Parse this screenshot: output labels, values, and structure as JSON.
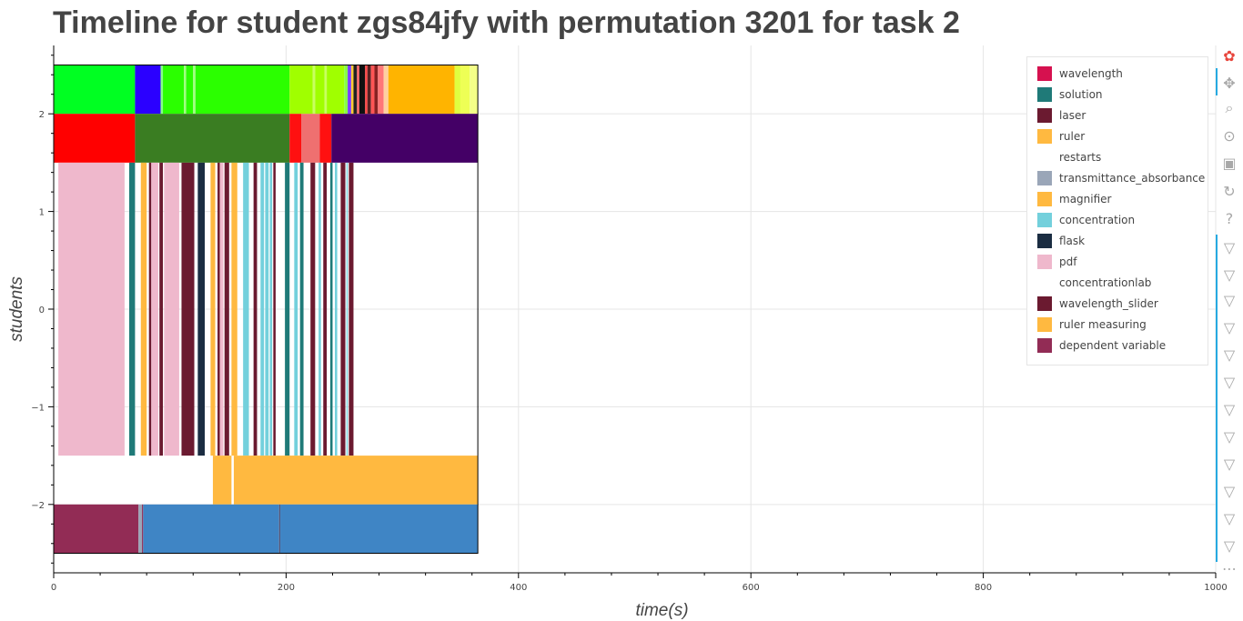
{
  "title": "Timeline for student zgs84jfy with permutation 3201 for task 2",
  "chart_data": {
    "type": "timeline",
    "title": "Timeline for student zgs84jfy with permutation 3201 for task 2",
    "xlabel": "time(s)",
    "ylabel": "students",
    "xlim": [
      0,
      1000
    ],
    "ylim": [
      -2.7,
      2.7
    ],
    "grid": true,
    "x_ticks": [
      0,
      200,
      400,
      600,
      800,
      1000
    ],
    "y_ticks": [
      {
        "value": 2,
        "label": "2"
      },
      {
        "value": 1,
        "label": "1"
      },
      {
        "value": 0,
        "label": "0"
      },
      {
        "value": -1,
        "label": "−1"
      },
      {
        "value": -2,
        "label": "−2"
      }
    ],
    "legend_position": "top-right",
    "legend": [
      {
        "label": "wavelength",
        "color": "#d6114f"
      },
      {
        "label": "solution",
        "color": "#1f7a78"
      },
      {
        "label": "laser",
        "color": "#6b1a30"
      },
      {
        "label": "ruler",
        "color": "#ffb940"
      },
      {
        "label": "restarts",
        "color": "#ffffff"
      },
      {
        "label": "transmittance_absorbance",
        "color": "#9aa6b8"
      },
      {
        "label": "magnifier",
        "color": "#ffb940"
      },
      {
        "label": "concentration",
        "color": "#73d0dc"
      },
      {
        "label": "flask",
        "color": "#1b2d42"
      },
      {
        "label": "pdf",
        "color": "#efb8cc"
      },
      {
        "label": "concentrationlab",
        "color": "#ffffff"
      },
      {
        "label": "wavelength_slider",
        "color": "#6b1a30"
      },
      {
        "label": "ruler measuring",
        "color": "#ffb940"
      },
      {
        "label": "dependent variable",
        "color": "#922c55"
      }
    ],
    "rows": [
      {
        "y_range": [
          2.0,
          2.5
        ],
        "segments": [
          {
            "x0": 0,
            "x1": 70,
            "color": "#00ff22"
          },
          {
            "x0": 70,
            "x1": 92,
            "color": "#2b00ff"
          },
          {
            "x0": 92,
            "x1": 94,
            "color": "#88ff88"
          },
          {
            "x0": 94,
            "x1": 112,
            "color": "#2bff00"
          },
          {
            "x0": 112,
            "x1": 114,
            "color": "#a0ff80"
          },
          {
            "x0": 114,
            "x1": 120,
            "color": "#2bff00"
          },
          {
            "x0": 120,
            "x1": 122,
            "color": "#a0ff80"
          },
          {
            "x0": 122,
            "x1": 203,
            "color": "#2bff00"
          },
          {
            "x0": 203,
            "x1": 223,
            "color": "#a0ff00"
          },
          {
            "x0": 223,
            "x1": 225,
            "color": "#c8ff60"
          },
          {
            "x0": 225,
            "x1": 233,
            "color": "#a0ff00"
          },
          {
            "x0": 233,
            "x1": 235,
            "color": "#c8ff60"
          },
          {
            "x0": 235,
            "x1": 250,
            "color": "#a0ff00"
          },
          {
            "x0": 250,
            "x1": 253,
            "color": "#88ff44"
          },
          {
            "x0": 253,
            "x1": 256,
            "color": "#7a3cff"
          },
          {
            "x0": 256,
            "x1": 258,
            "color": "#ffcc33"
          },
          {
            "x0": 258,
            "x1": 261,
            "color": "#222222"
          },
          {
            "x0": 261,
            "x1": 263,
            "color": "#ff6666"
          },
          {
            "x0": 263,
            "x1": 268,
            "color": "#111111"
          },
          {
            "x0": 268,
            "x1": 270,
            "color": "#ff4444"
          },
          {
            "x0": 270,
            "x1": 273,
            "color": "#552222"
          },
          {
            "x0": 273,
            "x1": 276,
            "color": "#ff5555"
          },
          {
            "x0": 276,
            "x1": 279,
            "color": "#882222"
          },
          {
            "x0": 279,
            "x1": 284,
            "color": "#ff7777"
          },
          {
            "x0": 284,
            "x1": 288,
            "color": "#ffd0a0"
          },
          {
            "x0": 288,
            "x1": 345,
            "color": "#ffb400"
          },
          {
            "x0": 345,
            "x1": 350,
            "color": "#e0ff40"
          },
          {
            "x0": 350,
            "x1": 358,
            "color": "#eeff55"
          },
          {
            "x0": 358,
            "x1": 365,
            "color": "#f4ff88"
          }
        ]
      },
      {
        "y_range": [
          1.5,
          2.0
        ],
        "segments": [
          {
            "x0": 0,
            "x1": 70,
            "color": "#ff0000"
          },
          {
            "x0": 70,
            "x1": 203,
            "color": "#3a7d22"
          },
          {
            "x0": 203,
            "x1": 213,
            "color": "#ff1010"
          },
          {
            "x0": 213,
            "x1": 229,
            "color": "#ef7070"
          },
          {
            "x0": 229,
            "x1": 239,
            "color": "#ff1010"
          },
          {
            "x0": 239,
            "x1": 365,
            "color": "#440066"
          }
        ]
      },
      {
        "y_range": [
          -1.5,
          1.5
        ],
        "segments": [
          {
            "x0": 4,
            "x1": 61,
            "color": "#efb8cc"
          },
          {
            "x0": 65,
            "x1": 70,
            "color": "#1f7a78"
          },
          {
            "x0": 75,
            "x1": 80,
            "color": "#ffb940"
          },
          {
            "x0": 82,
            "x1": 84,
            "color": "#6b1a30"
          },
          {
            "x0": 84,
            "x1": 90,
            "color": "#efb8cc"
          },
          {
            "x0": 91,
            "x1": 94,
            "color": "#6b1a30"
          },
          {
            "x0": 95,
            "x1": 96,
            "color": "#efb8cc"
          },
          {
            "x0": 96,
            "x1": 108,
            "color": "#efb8cc"
          },
          {
            "x0": 110,
            "x1": 121,
            "color": "#6b1a30"
          },
          {
            "x0": 124,
            "x1": 130,
            "color": "#1b2d42"
          },
          {
            "x0": 135,
            "x1": 139,
            "color": "#ffb940"
          },
          {
            "x0": 141,
            "x1": 143,
            "color": "#6b1a30"
          },
          {
            "x0": 143,
            "x1": 146,
            "color": "#efb8cc"
          },
          {
            "x0": 147,
            "x1": 151,
            "color": "#6b1a30"
          },
          {
            "x0": 153,
            "x1": 158,
            "color": "#ffb940"
          },
          {
            "x0": 163,
            "x1": 168,
            "color": "#73d0dc"
          },
          {
            "x0": 172,
            "x1": 175,
            "color": "#6b1a30"
          },
          {
            "x0": 178,
            "x1": 181,
            "color": "#73d0dc"
          },
          {
            "x0": 182,
            "x1": 185,
            "color": "#73d0dc"
          },
          {
            "x0": 186,
            "x1": 188,
            "color": "#73d0dc"
          },
          {
            "x0": 189,
            "x1": 191,
            "color": "#6b1a30"
          },
          {
            "x0": 199,
            "x1": 203,
            "color": "#1f7a78"
          },
          {
            "x0": 207,
            "x1": 210,
            "color": "#73d0dc"
          },
          {
            "x0": 212,
            "x1": 215,
            "color": "#1f7a78"
          },
          {
            "x0": 221,
            "x1": 225,
            "color": "#6b1a30"
          },
          {
            "x0": 228,
            "x1": 230,
            "color": "#73d0dc"
          },
          {
            "x0": 232,
            "x1": 235,
            "color": "#6b1a30"
          },
          {
            "x0": 238,
            "x1": 240,
            "color": "#1f7a78"
          },
          {
            "x0": 242,
            "x1": 244,
            "color": "#73d0dc"
          },
          {
            "x0": 247,
            "x1": 251,
            "color": "#6b1a30"
          },
          {
            "x0": 252,
            "x1": 253,
            "color": "#73d0dc"
          },
          {
            "x0": 254,
            "x1": 258,
            "color": "#6b1a30"
          }
        ]
      },
      {
        "y_range": [
          -2.0,
          -1.5
        ],
        "segments": [
          {
            "x0": 137,
            "x1": 153,
            "color": "#ffb940"
          },
          {
            "x0": 155,
            "x1": 365,
            "color": "#ffb940"
          }
        ]
      },
      {
        "y_range": [
          -2.5,
          -2.0
        ],
        "segments": [
          {
            "x0": 0,
            "x1": 73,
            "color": "#922c55"
          },
          {
            "x0": 73,
            "x1": 76,
            "color": "#9aa6b8"
          },
          {
            "x0": 76,
            "x1": 77,
            "color": "#922c55"
          },
          {
            "x0": 77,
            "x1": 194,
            "color": "#3f85c5"
          },
          {
            "x0": 194,
            "x1": 195,
            "color": "#555577"
          },
          {
            "x0": 195,
            "x1": 365,
            "color": "#3f85c5"
          }
        ]
      }
    ],
    "frame": {
      "x0": 0,
      "x1": 365,
      "y0": -2.5,
      "y1": 2.5
    }
  },
  "toolbar": {
    "tools": [
      {
        "name": "bokeh-logo-icon",
        "glyph": "✿"
      },
      {
        "name": "pan-icon",
        "glyph": "✥"
      },
      {
        "name": "box-zoom-icon",
        "glyph": "⌕"
      },
      {
        "name": "wheel-zoom-icon",
        "glyph": "⊙"
      },
      {
        "name": "save-icon",
        "glyph": "▣"
      },
      {
        "name": "reset-icon",
        "glyph": "↻"
      },
      {
        "name": "help-icon",
        "glyph": "?"
      },
      {
        "name": "hover-icon-1",
        "glyph": "▽"
      },
      {
        "name": "hover-icon-2",
        "glyph": "▽"
      },
      {
        "name": "hover-icon-3",
        "glyph": "▽"
      },
      {
        "name": "hover-icon-4",
        "glyph": "▽"
      },
      {
        "name": "hover-icon-5",
        "glyph": "▽"
      },
      {
        "name": "hover-icon-6",
        "glyph": "▽"
      },
      {
        "name": "hover-icon-7",
        "glyph": "▽"
      },
      {
        "name": "hover-icon-8",
        "glyph": "▽"
      },
      {
        "name": "hover-icon-9",
        "glyph": "▽"
      },
      {
        "name": "hover-icon-10",
        "glyph": "▽"
      },
      {
        "name": "hover-icon-11",
        "glyph": "▽"
      },
      {
        "name": "hover-icon-12",
        "glyph": "▽"
      },
      {
        "name": "more-icon",
        "glyph": "⋯"
      }
    ]
  }
}
